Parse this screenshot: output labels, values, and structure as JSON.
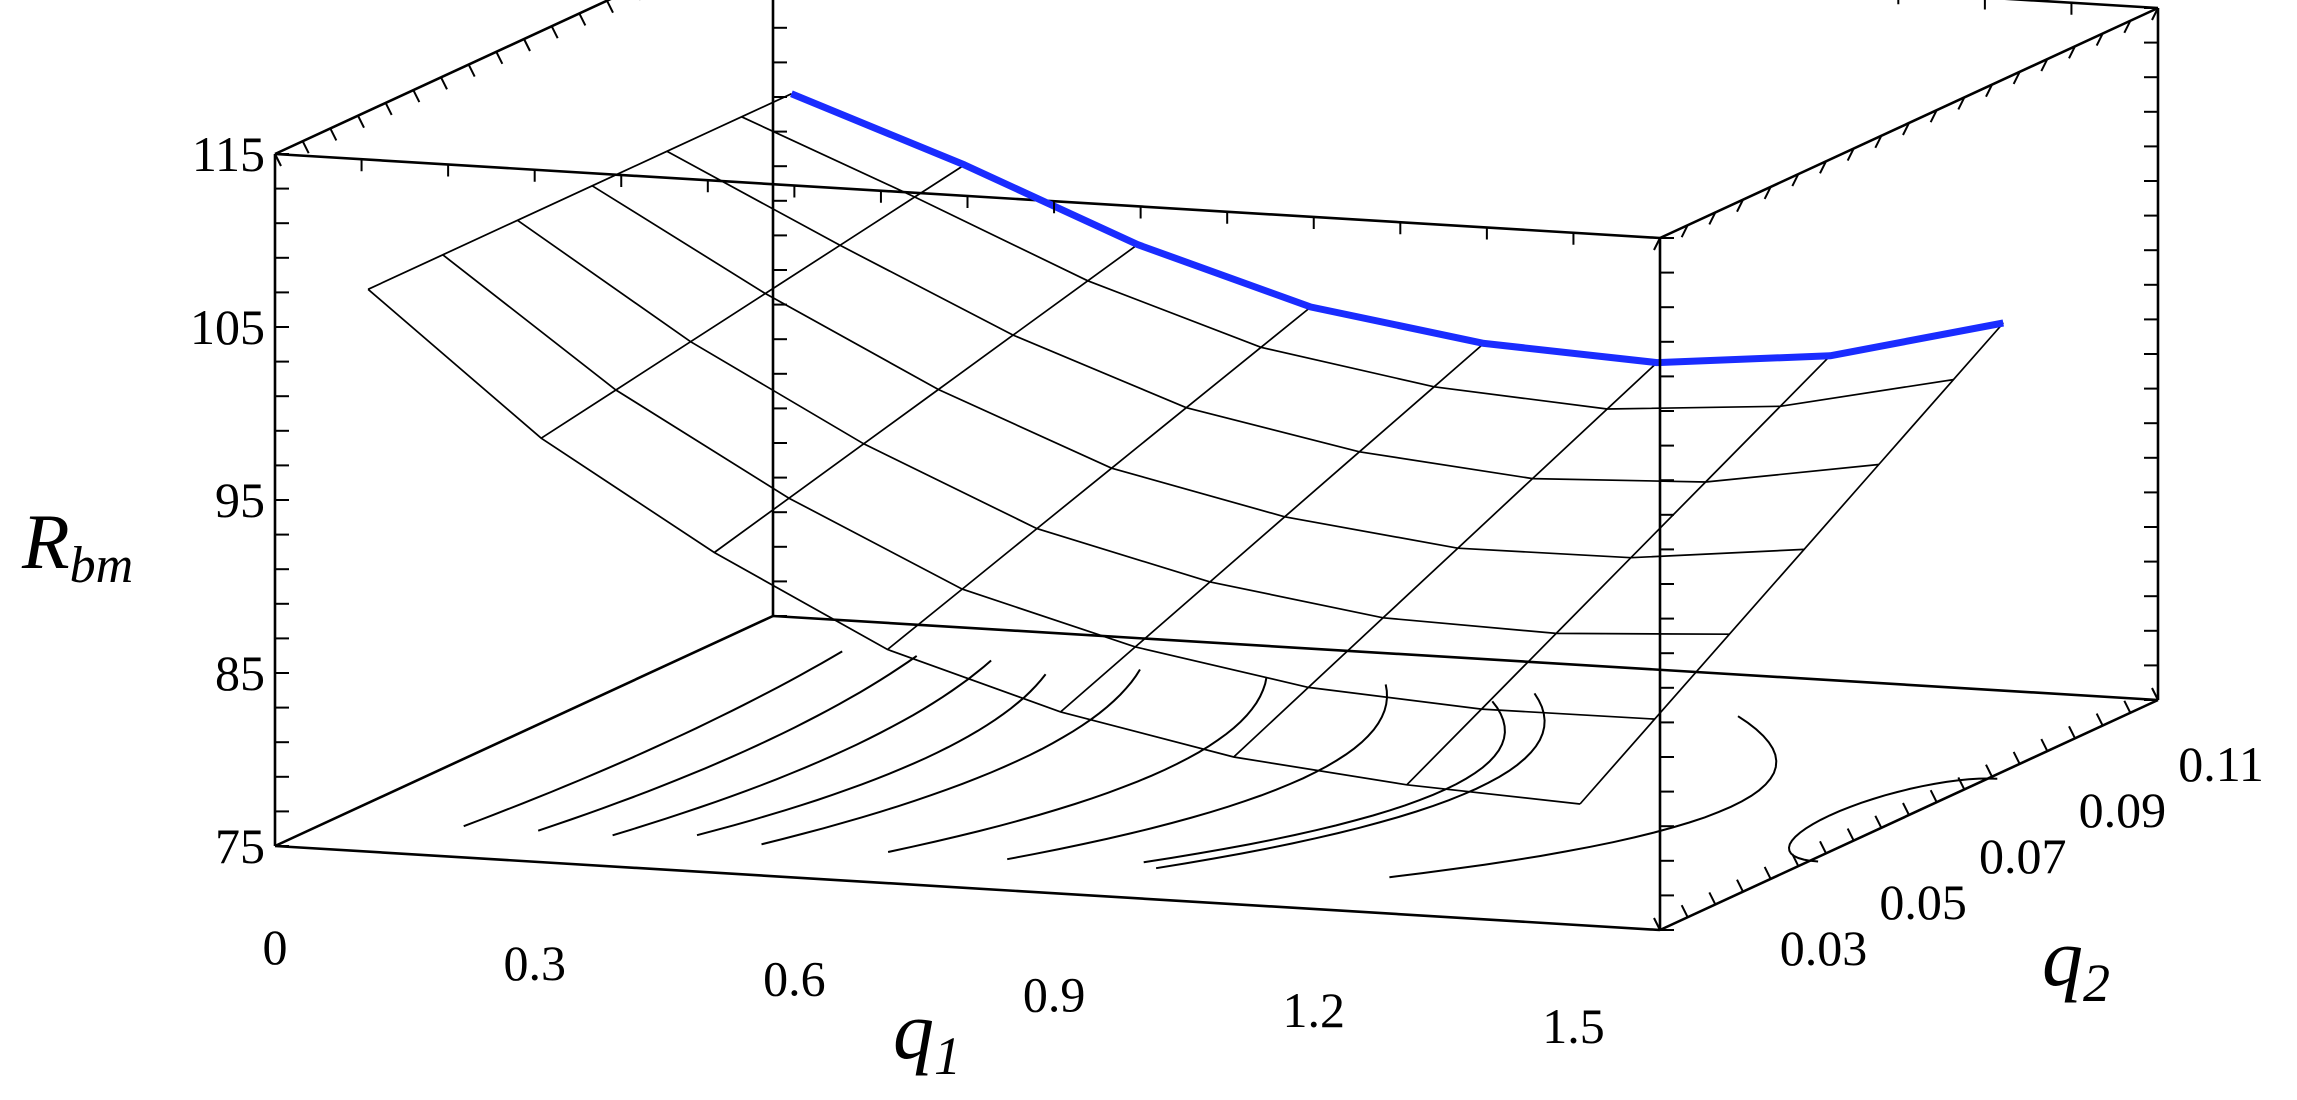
{
  "chart_data": {
    "type": "surface3d",
    "title": "",
    "axes": {
      "x": {
        "label": "q",
        "label_sub": "1",
        "range": [
          0,
          1.6
        ],
        "ticks": [
          "0",
          "0.3",
          "0.6",
          "0.9",
          "1.2",
          "1.5"
        ],
        "tick_values": [
          0,
          0.3,
          0.6,
          0.9,
          1.2,
          1.5
        ]
      },
      "y": {
        "label": "q",
        "label_sub": "2",
        "range": [
          0.02,
          0.12
        ],
        "ticks": [
          "0.03",
          "0.05",
          "0.07",
          "0.09",
          "0.11"
        ],
        "tick_values": [
          0.03,
          0.05,
          0.07,
          0.09,
          0.11
        ]
      },
      "z": {
        "label": "R",
        "label_sub": "bm",
        "range": [
          75,
          115
        ],
        "ticks": [
          "115",
          "105",
          "95",
          "85",
          "75"
        ],
        "tick_values": [
          115,
          105,
          95,
          85,
          75
        ]
      }
    },
    "surface": {
      "q1_grid": [
        0.05,
        0.25,
        0.45,
        0.65,
        0.85,
        1.05,
        1.25,
        1.45
      ],
      "q2_grid": [
        0.03,
        0.045,
        0.06,
        0.075,
        0.09,
        0.105,
        0.115
      ],
      "front_edge_q2": 0.03,
      "back_edge_q2": 0.115,
      "front_edge_values": [
        106,
        98,
        92,
        87,
        84,
        82,
        81,
        80.5
      ],
      "back_edge_values": [
        106,
        102.5,
        98.5,
        95.5,
        94,
        93.5,
        94.5,
        97
      ]
    },
    "floor_contours": {
      "black_q1_centers": [
        0.15,
        0.25,
        0.35,
        0.55,
        0.72,
        0.88,
        1.08
      ],
      "highlight_contours": [
        {
          "q1_center": 0.45,
          "color": "#00d0d8"
        },
        {
          "q1_center": 1.05,
          "color": "#cc44cc"
        },
        {
          "q1_center": 1.38,
          "color": "#cc44cc"
        }
      ],
      "right_closed_contour_q1": 1.52
    },
    "surface_highlight_color": "#1a2cff",
    "grid": false,
    "legend": "none"
  }
}
